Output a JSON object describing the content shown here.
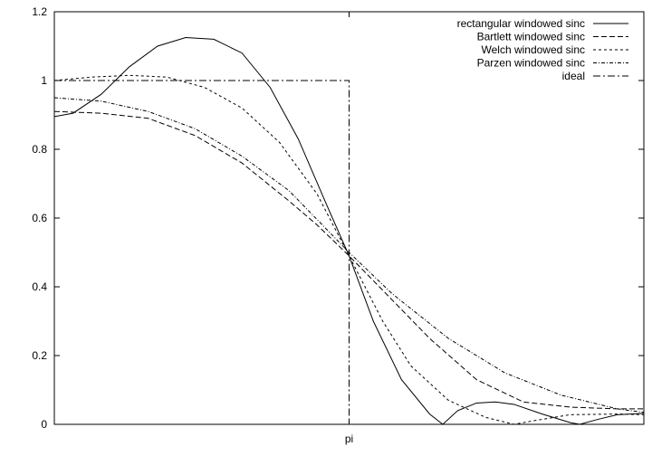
{
  "chart_data": {
    "type": "line",
    "title": "",
    "xlabel": "",
    "ylabel": "",
    "xlim": [
      0,
      6.2832
    ],
    "ylim": [
      0,
      1.2
    ],
    "grid": false,
    "legend_position": "top-right",
    "x_ticks": [
      {
        "value": 3.1416,
        "label": "pi"
      }
    ],
    "y_ticks": [
      {
        "value": 0,
        "label": "0"
      },
      {
        "value": 0.2,
        "label": "0.2"
      },
      {
        "value": 0.4,
        "label": "0.4"
      },
      {
        "value": 0.6,
        "label": "0.6"
      },
      {
        "value": 0.8,
        "label": "0.8"
      },
      {
        "value": 1.0,
        "label": "1"
      },
      {
        "value": 1.2,
        "label": "1.2"
      }
    ],
    "series": [
      {
        "name": "rectangular windowed sinc",
        "dash": "",
        "points": [
          [
            0,
            0.895
          ],
          [
            0.2,
            0.905
          ],
          [
            0.5,
            0.96
          ],
          [
            0.8,
            1.04
          ],
          [
            1.1,
            1.1
          ],
          [
            1.4,
            1.125
          ],
          [
            1.7,
            1.12
          ],
          [
            2.0,
            1.08
          ],
          [
            2.3,
            0.98
          ],
          [
            2.6,
            0.83
          ],
          [
            2.9,
            0.64
          ],
          [
            3.1416,
            0.49
          ],
          [
            3.4,
            0.3
          ],
          [
            3.7,
            0.13
          ],
          [
            4.0,
            0.03
          ],
          [
            4.14,
            0.0
          ],
          [
            4.3,
            0.04
          ],
          [
            4.5,
            0.062
          ],
          [
            4.7,
            0.065
          ],
          [
            4.9,
            0.058
          ],
          [
            5.2,
            0.03
          ],
          [
            5.5,
            0.005
          ],
          [
            5.6,
            0.0
          ],
          [
            5.8,
            0.015
          ],
          [
            6.0,
            0.028
          ],
          [
            6.2832,
            0.032
          ]
        ]
      },
      {
        "name": "Bartlett windowed sinc",
        "dash": "6,3",
        "points": [
          [
            0,
            0.91
          ],
          [
            0.5,
            0.905
          ],
          [
            1.0,
            0.89
          ],
          [
            1.5,
            0.84
          ],
          [
            2.0,
            0.76
          ],
          [
            2.5,
            0.65
          ],
          [
            2.8,
            0.58
          ],
          [
            3.1416,
            0.49
          ],
          [
            3.5,
            0.39
          ],
          [
            4.0,
            0.25
          ],
          [
            4.5,
            0.13
          ],
          [
            5.0,
            0.065
          ],
          [
            5.5,
            0.05
          ],
          [
            6.0,
            0.045
          ],
          [
            6.2832,
            0.045
          ]
        ]
      },
      {
        "name": "Welch windowed sinc",
        "dash": "3,3",
        "points": [
          [
            0,
            1.0
          ],
          [
            0.4,
            1.01
          ],
          [
            0.8,
            1.015
          ],
          [
            1.2,
            1.01
          ],
          [
            1.6,
            0.98
          ],
          [
            2.0,
            0.92
          ],
          [
            2.4,
            0.82
          ],
          [
            2.8,
            0.67
          ],
          [
            3.1416,
            0.49
          ],
          [
            3.5,
            0.3
          ],
          [
            3.8,
            0.17
          ],
          [
            4.2,
            0.07
          ],
          [
            4.6,
            0.02
          ],
          [
            4.9,
            0.0
          ],
          [
            5.1,
            0.01
          ],
          [
            5.5,
            0.028
          ],
          [
            6.0,
            0.03
          ],
          [
            6.2832,
            0.028
          ]
        ]
      },
      {
        "name": "Parzen windowed sinc",
        "dash": "4,2,1,2",
        "points": [
          [
            0,
            0.95
          ],
          [
            0.5,
            0.94
          ],
          [
            1.0,
            0.91
          ],
          [
            1.5,
            0.86
          ],
          [
            2.0,
            0.78
          ],
          [
            2.5,
            0.68
          ],
          [
            3.1416,
            0.5
          ],
          [
            3.6,
            0.38
          ],
          [
            4.2,
            0.25
          ],
          [
            4.8,
            0.15
          ],
          [
            5.4,
            0.085
          ],
          [
            6.0,
            0.045
          ],
          [
            6.2832,
            0.035
          ]
        ]
      },
      {
        "name": "ideal",
        "dash": "8,3,2,3",
        "points": [
          [
            0,
            1.0
          ],
          [
            3.1416,
            1.0
          ],
          [
            3.1416,
            0
          ],
          [
            6.2832,
            0
          ]
        ]
      }
    ]
  }
}
